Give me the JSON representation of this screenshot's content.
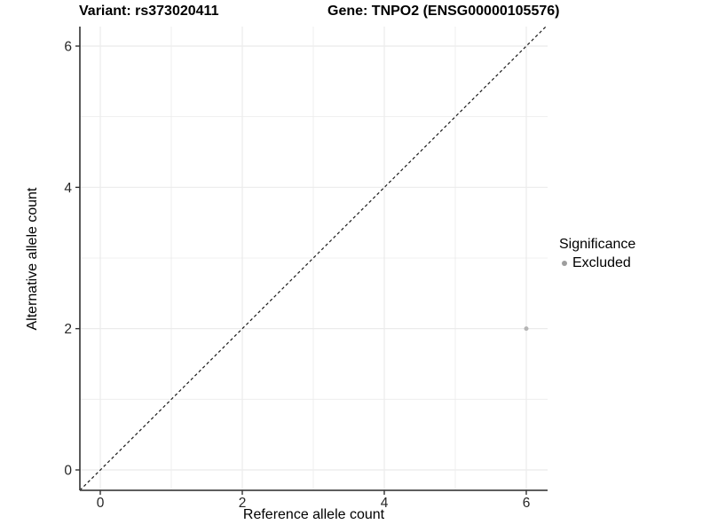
{
  "titles": {
    "variant": "Variant: rs373020411",
    "gene": "Gene: TNPO2 (ENSG00000105576)"
  },
  "axes": {
    "x": {
      "label": "Reference allele count",
      "ticks": [
        0,
        2,
        4,
        6
      ],
      "minor": [
        1,
        3,
        5
      ]
    },
    "y": {
      "label": "Alternative allele count",
      "ticks": [
        0,
        2,
        4,
        6
      ],
      "minor": [
        1,
        3,
        5
      ]
    }
  },
  "legend": {
    "title": "Significance",
    "items": [
      {
        "label": "Excluded",
        "color": "#9e9e9e"
      }
    ]
  },
  "chart_data": {
    "type": "scatter",
    "title": "Variant: rs373020411 | Gene: TNPO2 (ENSG00000105576)",
    "xlabel": "Reference allele count",
    "ylabel": "Alternative allele count",
    "xlim": [
      -0.3,
      6.3
    ],
    "ylim": [
      -0.3,
      6.3
    ],
    "x_ticks": [
      0,
      2,
      4,
      6
    ],
    "y_ticks": [
      0,
      2,
      4,
      6
    ],
    "grid": "on",
    "legend_position": "right",
    "series": [
      {
        "name": "Excluded",
        "color": "#b5b5b5",
        "points": [
          {
            "x": 6,
            "y": 2
          }
        ]
      }
    ],
    "reference_line": {
      "type": "identity y=x",
      "style": "dashed",
      "color": "#1a1a1a"
    }
  },
  "colors": {
    "background": "#ffffff",
    "grid": "#ebebeb",
    "axis_line": "#474747",
    "tick_mark": "#333333",
    "tick_text": "#262626",
    "point": "#b5b5b5",
    "dashed_line": "#1a1a1a"
  }
}
